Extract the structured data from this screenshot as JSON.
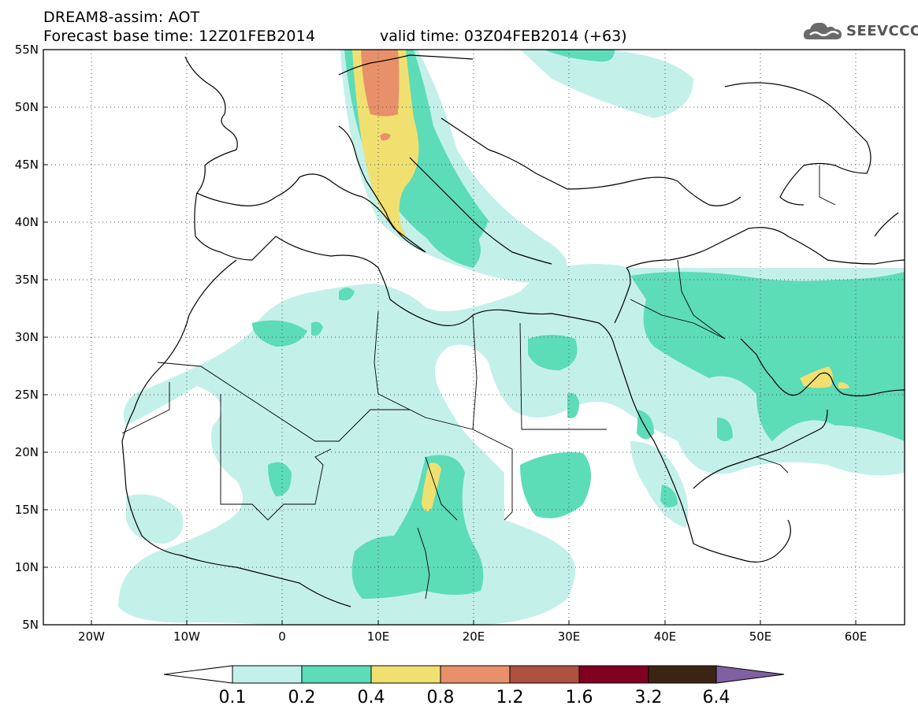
{
  "header": {
    "title": "DREAM8-assim: AOT",
    "base_time": "Forecast base time: 12Z01FEB2014",
    "valid_time": "valid time: 03Z04FEB2014 (+63)",
    "logo_text": "SEEVCCC"
  },
  "map": {
    "lon_range": [
      -25,
      65
    ],
    "lat_range": [
      5,
      55
    ],
    "lat_labels": [
      "55N",
      "50N",
      "45N",
      "40N",
      "35N",
      "30N",
      "25N",
      "20N",
      "15N",
      "10N",
      "5N"
    ],
    "lon_labels": [
      "20W",
      "10W",
      "0",
      "10E",
      "20E",
      "30E",
      "40E",
      "50E",
      "60E"
    ],
    "grid": "dotted"
  },
  "colorbar": {
    "labels": [
      "0.1",
      "0.2",
      "0.4",
      "0.8",
      "1.2",
      "1.6",
      "3.2",
      "6.4"
    ],
    "colors": [
      "#ffffff",
      "#c4f0ea",
      "#5ddcb8",
      "#f0e070",
      "#e8906a",
      "#b05040",
      "#800020",
      "#3c2414",
      "#8060a0"
    ]
  },
  "icons": {
    "logo": "cloud-icon"
  }
}
